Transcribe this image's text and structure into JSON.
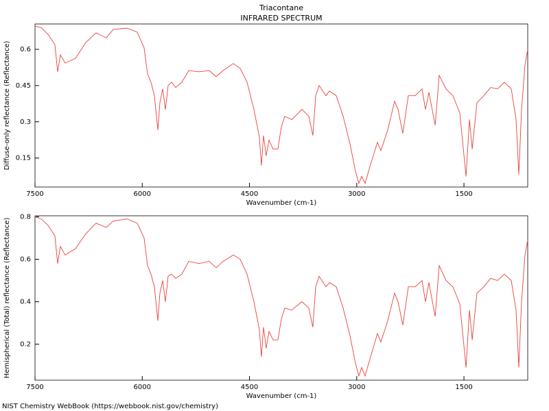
{
  "footer": "NIST Chemistry WebBook (https://webbook.nist.gov/chemistry)",
  "chart_data": [
    {
      "type": "line",
      "title": "Triacontane",
      "subtitle": "INFRARED SPECTRUM",
      "xlabel": "Wavenumber (cm-1)",
      "ylabel": "Diffuse-only reflectance (Reflectance)",
      "xlim": [
        7500,
        608
      ],
      "xticks": [
        7500,
        6000,
        4500,
        3000,
        1500
      ],
      "ylim": [
        0.03,
        0.705
      ],
      "yticks": [
        0.15,
        0.3,
        0.45,
        0.6
      ],
      "color": "#e8413c",
      "x": [
        7500,
        7414,
        7318,
        7222,
        7183,
        7145,
        7078,
        6934,
        6790,
        6646,
        6502,
        6406,
        6214,
        6070,
        5974,
        5926,
        5878,
        5830,
        5782,
        5753,
        5714,
        5676,
        5638,
        5590,
        5532,
        5446,
        5350,
        5206,
        5062,
        4966,
        4870,
        4726,
        4630,
        4534,
        4438,
        4362,
        4333,
        4304,
        4266,
        4227,
        4170,
        4102,
        4054,
        4006,
        3910,
        3766,
        3670,
        3613,
        3574,
        3526,
        3430,
        3382,
        3286,
        3190,
        3094,
        3018,
        2970,
        2931,
        2883,
        2806,
        2710,
        2662,
        2566,
        2470,
        2422,
        2355,
        2278,
        2182,
        2086,
        2038,
        1990,
        1903,
        1846,
        1750,
        1654,
        1558,
        1471,
        1423,
        1385,
        1318,
        1222,
        1126,
        1030,
        934,
        838,
        771,
        733,
        694,
        646,
        608
      ],
      "values": [
        0.696,
        0.69,
        0.662,
        0.62,
        0.507,
        0.577,
        0.543,
        0.563,
        0.628,
        0.668,
        0.648,
        0.682,
        0.688,
        0.671,
        0.606,
        0.498,
        0.464,
        0.408,
        0.266,
        0.379,
        0.436,
        0.351,
        0.45,
        0.464,
        0.442,
        0.464,
        0.512,
        0.507,
        0.512,
        0.487,
        0.512,
        0.541,
        0.521,
        0.464,
        0.351,
        0.238,
        0.119,
        0.243,
        0.159,
        0.224,
        0.187,
        0.187,
        0.28,
        0.323,
        0.309,
        0.351,
        0.323,
        0.243,
        0.408,
        0.45,
        0.408,
        0.427,
        0.408,
        0.323,
        0.209,
        0.096,
        0.045,
        0.074,
        0.045,
        0.124,
        0.215,
        0.181,
        0.266,
        0.385,
        0.351,
        0.252,
        0.408,
        0.408,
        0.436,
        0.351,
        0.422,
        0.286,
        0.492,
        0.436,
        0.408,
        0.337,
        0.074,
        0.309,
        0.187,
        0.379,
        0.408,
        0.442,
        0.436,
        0.464,
        0.436,
        0.309,
        0.082,
        0.351,
        0.535,
        0.6
      ]
    },
    {
      "type": "line",
      "xlabel": "Wavenumber (cm-1)",
      "ylabel": "Hemispherical (Total) reflectance (Reflectance)",
      "xlim": [
        7500,
        608
      ],
      "xticks": [
        7500,
        6000,
        4500,
        3000,
        1500
      ],
      "ylim": [
        0.03,
        0.805
      ],
      "yticks": [
        0.2,
        0.4,
        0.6,
        0.8
      ],
      "color": "#e8413c",
      "x": [
        7500,
        7414,
        7318,
        7222,
        7183,
        7145,
        7078,
        6934,
        6790,
        6646,
        6502,
        6406,
        6214,
        6070,
        5974,
        5926,
        5878,
        5830,
        5782,
        5753,
        5714,
        5676,
        5638,
        5590,
        5532,
        5446,
        5350,
        5206,
        5062,
        4966,
        4870,
        4726,
        4630,
        4534,
        4438,
        4362,
        4333,
        4304,
        4266,
        4227,
        4170,
        4102,
        4054,
        4006,
        3910,
        3766,
        3670,
        3613,
        3574,
        3526,
        3430,
        3382,
        3286,
        3190,
        3094,
        3018,
        2970,
        2931,
        2883,
        2806,
        2710,
        2662,
        2566,
        2470,
        2422,
        2355,
        2278,
        2182,
        2086,
        2038,
        1990,
        1903,
        1846,
        1750,
        1654,
        1558,
        1471,
        1423,
        1385,
        1318,
        1222,
        1126,
        1030,
        934,
        838,
        771,
        733,
        694,
        646,
        608
      ],
      "values": [
        0.8,
        0.79,
        0.76,
        0.71,
        0.58,
        0.66,
        0.62,
        0.65,
        0.72,
        0.77,
        0.75,
        0.78,
        0.79,
        0.77,
        0.7,
        0.57,
        0.53,
        0.47,
        0.31,
        0.44,
        0.5,
        0.4,
        0.52,
        0.53,
        0.51,
        0.53,
        0.59,
        0.58,
        0.59,
        0.56,
        0.59,
        0.62,
        0.6,
        0.53,
        0.4,
        0.27,
        0.14,
        0.28,
        0.18,
        0.26,
        0.22,
        0.22,
        0.32,
        0.37,
        0.36,
        0.4,
        0.37,
        0.28,
        0.47,
        0.52,
        0.47,
        0.49,
        0.47,
        0.37,
        0.24,
        0.11,
        0.05,
        0.09,
        0.05,
        0.14,
        0.25,
        0.21,
        0.31,
        0.44,
        0.4,
        0.29,
        0.47,
        0.47,
        0.5,
        0.4,
        0.49,
        0.33,
        0.57,
        0.5,
        0.47,
        0.39,
        0.09,
        0.36,
        0.22,
        0.44,
        0.47,
        0.51,
        0.5,
        0.53,
        0.5,
        0.36,
        0.09,
        0.4,
        0.62,
        0.69
      ]
    }
  ]
}
